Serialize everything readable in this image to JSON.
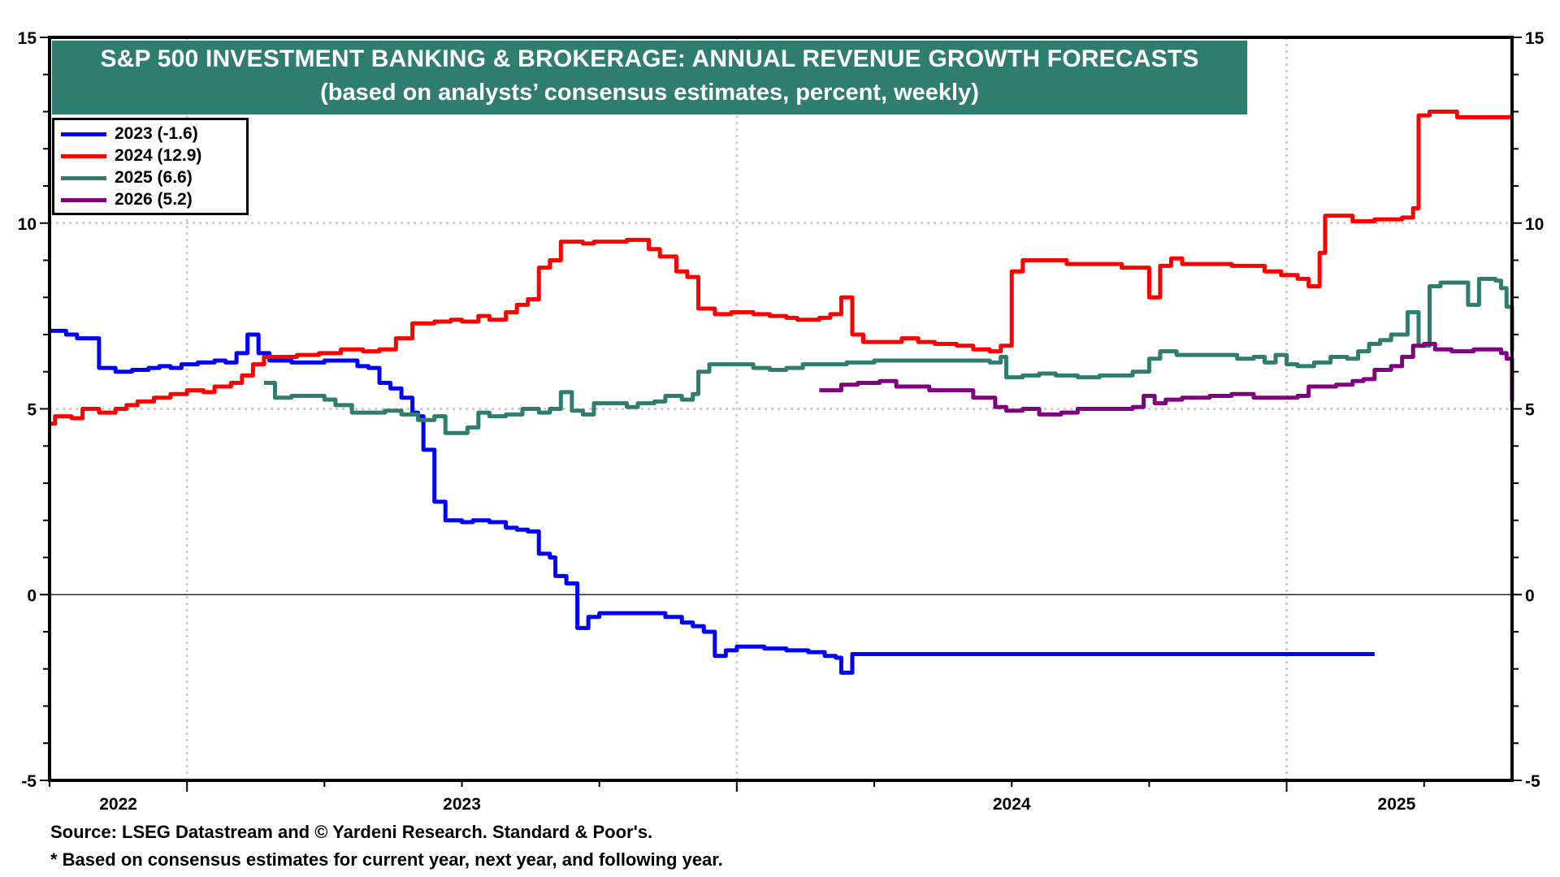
{
  "chart_data": {
    "type": "line",
    "title": "S&P 500 INVESTMENT BANKING & BROKERAGE: ANNUAL REVENUE GROWTH FORECASTS",
    "subtitle": "(based on analysts’ consensus estimates, percent, weekly)",
    "xlabel": "",
    "ylabel": "",
    "xlim": [
      2022.75,
      2025.41
    ],
    "ylim": [
      -5,
      15
    ],
    "y_ticks": [
      -5,
      0,
      5,
      10,
      15
    ],
    "y_tick_labels": [
      "-5",
      "0",
      "5",
      "10",
      "15"
    ],
    "y_minor_step": 1,
    "x_quarter_ticks": [
      2022.75,
      2023.0,
      2023.25,
      2023.5,
      2023.75,
      2024.0,
      2024.25,
      2024.5,
      2024.75,
      2025.0,
      2025.25
    ],
    "x_year_gridlines": [
      2023.0,
      2024.0,
      2025.0
    ],
    "x_tick_labels": [
      {
        "label": "2022",
        "x": 2022.875
      },
      {
        "label": "2023",
        "x": 2023.5
      },
      {
        "label": "2024",
        "x": 2024.5
      },
      {
        "label": "2025",
        "x": 2025.2
      }
    ],
    "y_gridlines": [
      5,
      10
    ],
    "zero_line": true,
    "legend_position": "top-left",
    "series": [
      {
        "name": "2023 (-1.6)",
        "color": "#0000FF",
        "step": true,
        "points": [
          [
            2022.75,
            7.1
          ],
          [
            2022.78,
            7.0
          ],
          [
            2022.8,
            6.9
          ],
          [
            2022.83,
            6.9
          ],
          [
            2022.84,
            6.1
          ],
          [
            2022.86,
            6.1
          ],
          [
            2022.87,
            6.0
          ],
          [
            2022.89,
            6.0
          ],
          [
            2022.9,
            6.05
          ],
          [
            2022.93,
            6.1
          ],
          [
            2022.95,
            6.15
          ],
          [
            2022.97,
            6.1
          ],
          [
            2022.99,
            6.2
          ],
          [
            2023.02,
            6.25
          ],
          [
            2023.05,
            6.3
          ],
          [
            2023.07,
            6.25
          ],
          [
            2023.09,
            6.5
          ],
          [
            2023.11,
            7.0
          ],
          [
            2023.13,
            6.5
          ],
          [
            2023.15,
            6.3
          ],
          [
            2023.19,
            6.25
          ],
          [
            2023.25,
            6.3
          ],
          [
            2023.29,
            6.3
          ],
          [
            2023.31,
            6.15
          ],
          [
            2023.33,
            6.1
          ],
          [
            2023.35,
            5.7
          ],
          [
            2023.37,
            5.55
          ],
          [
            2023.39,
            5.3
          ],
          [
            2023.41,
            4.9
          ],
          [
            2023.42,
            4.8
          ],
          [
            2023.43,
            3.9
          ],
          [
            2023.45,
            2.5
          ],
          [
            2023.47,
            2.0
          ],
          [
            2023.5,
            1.95
          ],
          [
            2023.52,
            2.0
          ],
          [
            2023.55,
            1.95
          ],
          [
            2023.58,
            1.8
          ],
          [
            2023.6,
            1.75
          ],
          [
            2023.62,
            1.7
          ],
          [
            2023.64,
            1.1
          ],
          [
            2023.66,
            1.0
          ],
          [
            2023.67,
            0.5
          ],
          [
            2023.69,
            0.3
          ],
          [
            2023.71,
            -0.9
          ],
          [
            2023.73,
            -0.6
          ],
          [
            2023.75,
            -0.5
          ],
          [
            2023.85,
            -0.5
          ],
          [
            2023.87,
            -0.6
          ],
          [
            2023.9,
            -0.75
          ],
          [
            2023.92,
            -0.85
          ],
          [
            2023.94,
            -1.0
          ],
          [
            2023.96,
            -1.65
          ],
          [
            2023.98,
            -1.5
          ],
          [
            2024.0,
            -1.4
          ],
          [
            2024.05,
            -1.45
          ],
          [
            2024.09,
            -1.5
          ],
          [
            2024.13,
            -1.55
          ],
          [
            2024.16,
            -1.65
          ],
          [
            2024.18,
            -1.7
          ],
          [
            2024.19,
            -2.1
          ],
          [
            2024.21,
            -1.6
          ],
          [
            2025.16,
            -1.6
          ]
        ]
      },
      {
        "name": "2024 (12.9)",
        "color": "#FF0000",
        "step": true,
        "points": [
          [
            2022.75,
            4.6
          ],
          [
            2022.76,
            4.8
          ],
          [
            2022.79,
            4.75
          ],
          [
            2022.81,
            5.0
          ],
          [
            2022.84,
            4.9
          ],
          [
            2022.87,
            5.0
          ],
          [
            2022.89,
            5.1
          ],
          [
            2022.91,
            5.2
          ],
          [
            2022.94,
            5.3
          ],
          [
            2022.97,
            5.4
          ],
          [
            2023.0,
            5.5
          ],
          [
            2023.03,
            5.45
          ],
          [
            2023.05,
            5.6
          ],
          [
            2023.08,
            5.7
          ],
          [
            2023.1,
            5.9
          ],
          [
            2023.12,
            6.2
          ],
          [
            2023.14,
            6.4
          ],
          [
            2023.2,
            6.45
          ],
          [
            2023.24,
            6.5
          ],
          [
            2023.28,
            6.6
          ],
          [
            2023.32,
            6.55
          ],
          [
            2023.35,
            6.6
          ],
          [
            2023.38,
            6.9
          ],
          [
            2023.41,
            7.3
          ],
          [
            2023.45,
            7.35
          ],
          [
            2023.48,
            7.4
          ],
          [
            2023.5,
            7.35
          ],
          [
            2023.53,
            7.5
          ],
          [
            2023.55,
            7.4
          ],
          [
            2023.58,
            7.6
          ],
          [
            2023.6,
            7.8
          ],
          [
            2023.62,
            7.95
          ],
          [
            2023.64,
            8.8
          ],
          [
            2023.66,
            9.0
          ],
          [
            2023.68,
            9.5
          ],
          [
            2023.72,
            9.45
          ],
          [
            2023.74,
            9.5
          ],
          [
            2023.8,
            9.55
          ],
          [
            2023.84,
            9.3
          ],
          [
            2023.86,
            9.1
          ],
          [
            2023.89,
            8.7
          ],
          [
            2023.91,
            8.55
          ],
          [
            2023.93,
            7.7
          ],
          [
            2023.96,
            7.55
          ],
          [
            2023.99,
            7.6
          ],
          [
            2024.01,
            7.6
          ],
          [
            2024.03,
            7.55
          ],
          [
            2024.06,
            7.5
          ],
          [
            2024.09,
            7.45
          ],
          [
            2024.11,
            7.4
          ],
          [
            2024.15,
            7.45
          ],
          [
            2024.17,
            7.55
          ],
          [
            2024.19,
            8.0
          ],
          [
            2024.21,
            7.0
          ],
          [
            2024.23,
            6.8
          ],
          [
            2024.28,
            6.8
          ],
          [
            2024.3,
            6.9
          ],
          [
            2024.33,
            6.8
          ],
          [
            2024.36,
            6.75
          ],
          [
            2024.4,
            6.7
          ],
          [
            2024.43,
            6.6
          ],
          [
            2024.46,
            6.55
          ],
          [
            2024.48,
            6.7
          ],
          [
            2024.5,
            8.7
          ],
          [
            2024.52,
            9.0
          ],
          [
            2024.6,
            8.9
          ],
          [
            2024.66,
            8.9
          ],
          [
            2024.7,
            8.8
          ],
          [
            2024.73,
            8.8
          ],
          [
            2024.75,
            8.0
          ],
          [
            2024.77,
            8.85
          ],
          [
            2024.79,
            9.05
          ],
          [
            2024.81,
            8.9
          ],
          [
            2024.9,
            8.85
          ],
          [
            2024.96,
            8.7
          ],
          [
            2024.99,
            8.6
          ],
          [
            2025.02,
            8.5
          ],
          [
            2025.04,
            8.3
          ],
          [
            2025.06,
            9.2
          ],
          [
            2025.07,
            10.2
          ],
          [
            2025.12,
            10.05
          ],
          [
            2025.16,
            10.1
          ],
          [
            2025.21,
            10.15
          ],
          [
            2025.23,
            10.4
          ],
          [
            2025.24,
            12.9
          ],
          [
            2025.26,
            13.0
          ],
          [
            2025.31,
            12.85
          ],
          [
            2025.41,
            12.85
          ]
        ]
      },
      {
        "name": "2025 (6.6)",
        "color": "#2E7D6F",
        "step": true,
        "points": [
          [
            2023.14,
            5.7
          ],
          [
            2023.16,
            5.3
          ],
          [
            2023.19,
            5.35
          ],
          [
            2023.25,
            5.25
          ],
          [
            2023.27,
            5.1
          ],
          [
            2023.3,
            4.9
          ],
          [
            2023.36,
            4.95
          ],
          [
            2023.39,
            4.85
          ],
          [
            2023.42,
            4.7
          ],
          [
            2023.45,
            4.8
          ],
          [
            2023.47,
            4.35
          ],
          [
            2023.51,
            4.5
          ],
          [
            2023.53,
            4.9
          ],
          [
            2023.55,
            4.8
          ],
          [
            2023.58,
            4.85
          ],
          [
            2023.61,
            5.0
          ],
          [
            2023.64,
            4.9
          ],
          [
            2023.66,
            5.0
          ],
          [
            2023.68,
            5.45
          ],
          [
            2023.7,
            4.95
          ],
          [
            2023.72,
            4.85
          ],
          [
            2023.74,
            5.15
          ],
          [
            2023.8,
            5.05
          ],
          [
            2023.82,
            5.15
          ],
          [
            2023.85,
            5.2
          ],
          [
            2023.87,
            5.35
          ],
          [
            2023.9,
            5.25
          ],
          [
            2023.92,
            5.4
          ],
          [
            2023.93,
            6.0
          ],
          [
            2023.95,
            6.2
          ],
          [
            2024.0,
            6.2
          ],
          [
            2024.03,
            6.1
          ],
          [
            2024.06,
            6.05
          ],
          [
            2024.09,
            6.1
          ],
          [
            2024.12,
            6.2
          ],
          [
            2024.16,
            6.2
          ],
          [
            2024.2,
            6.25
          ],
          [
            2024.25,
            6.3
          ],
          [
            2024.3,
            6.3
          ],
          [
            2024.35,
            6.3
          ],
          [
            2024.39,
            6.3
          ],
          [
            2024.42,
            6.3
          ],
          [
            2024.46,
            6.25
          ],
          [
            2024.48,
            6.4
          ],
          [
            2024.49,
            5.85
          ],
          [
            2024.52,
            5.9
          ],
          [
            2024.55,
            5.95
          ],
          [
            2024.58,
            5.9
          ],
          [
            2024.62,
            5.85
          ],
          [
            2024.66,
            5.9
          ],
          [
            2024.7,
            5.9
          ],
          [
            2024.72,
            6.0
          ],
          [
            2024.75,
            6.35
          ],
          [
            2024.77,
            6.55
          ],
          [
            2024.8,
            6.45
          ],
          [
            2024.86,
            6.45
          ],
          [
            2024.91,
            6.35
          ],
          [
            2024.94,
            6.4
          ],
          [
            2024.96,
            6.25
          ],
          [
            2024.98,
            6.45
          ],
          [
            2025.0,
            6.2
          ],
          [
            2025.02,
            6.15
          ],
          [
            2025.05,
            6.25
          ],
          [
            2025.08,
            6.4
          ],
          [
            2025.11,
            6.35
          ],
          [
            2025.13,
            6.55
          ],
          [
            2025.15,
            6.75
          ],
          [
            2025.17,
            6.85
          ],
          [
            2025.19,
            7.0
          ],
          [
            2025.22,
            7.6
          ],
          [
            2025.24,
            6.7
          ],
          [
            2025.26,
            8.3
          ],
          [
            2025.28,
            8.4
          ],
          [
            2025.33,
            7.8
          ],
          [
            2025.35,
            8.5
          ],
          [
            2025.38,
            8.45
          ],
          [
            2025.39,
            8.25
          ],
          [
            2025.4,
            7.75
          ],
          [
            2025.41,
            6.55
          ]
        ]
      },
      {
        "name": "2026 (5.2)",
        "color": "#800080",
        "step": true,
        "points": [
          [
            2024.15,
            5.5
          ],
          [
            2024.19,
            5.65
          ],
          [
            2024.22,
            5.7
          ],
          [
            2024.26,
            5.75
          ],
          [
            2024.29,
            5.6
          ],
          [
            2024.35,
            5.5
          ],
          [
            2024.4,
            5.5
          ],
          [
            2024.43,
            5.3
          ],
          [
            2024.47,
            5.05
          ],
          [
            2024.49,
            4.95
          ],
          [
            2024.52,
            5.0
          ],
          [
            2024.55,
            4.85
          ],
          [
            2024.59,
            4.9
          ],
          [
            2024.62,
            5.0
          ],
          [
            2024.66,
            5.0
          ],
          [
            2024.7,
            5.0
          ],
          [
            2024.72,
            5.05
          ],
          [
            2024.74,
            5.35
          ],
          [
            2024.76,
            5.15
          ],
          [
            2024.78,
            5.25
          ],
          [
            2024.81,
            5.3
          ],
          [
            2024.86,
            5.35
          ],
          [
            2024.9,
            5.4
          ],
          [
            2024.94,
            5.3
          ],
          [
            2024.98,
            5.3
          ],
          [
            2025.02,
            5.35
          ],
          [
            2025.04,
            5.6
          ],
          [
            2025.06,
            5.6
          ],
          [
            2025.09,
            5.65
          ],
          [
            2025.12,
            5.75
          ],
          [
            2025.14,
            5.8
          ],
          [
            2025.16,
            6.05
          ],
          [
            2025.19,
            6.15
          ],
          [
            2025.21,
            6.4
          ],
          [
            2025.23,
            6.7
          ],
          [
            2025.25,
            6.75
          ],
          [
            2025.27,
            6.6
          ],
          [
            2025.3,
            6.55
          ],
          [
            2025.34,
            6.6
          ],
          [
            2025.38,
            6.6
          ],
          [
            2025.39,
            6.5
          ],
          [
            2025.4,
            6.35
          ],
          [
            2025.41,
            5.2
          ]
        ]
      }
    ]
  },
  "legend": {
    "items": [
      {
        "label": "2023 (-1.6)",
        "color": "#0000FF"
      },
      {
        "label": "2024 (12.9)",
        "color": "#FF0000"
      },
      {
        "label": "2025 (6.6)",
        "color": "#2E7D6F"
      },
      {
        "label": "2026 (5.2)",
        "color": "#800080"
      }
    ]
  },
  "footnotes": {
    "source": "Source: LSEG Datastream and © Yardeni Research. Standard & Poor's.",
    "note": "* Based on consensus estimates for current year, next year, and following year."
  },
  "colors": {
    "title_background": "#2E7D6F",
    "title_text": "#FFFFFF",
    "gridline": "#CCCCCC"
  }
}
